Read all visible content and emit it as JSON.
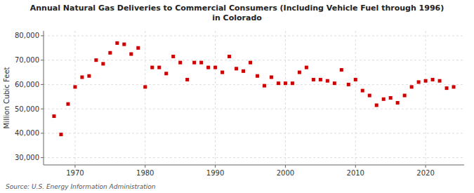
{
  "chart_data": {
    "type": "scatter",
    "title": "Annual Natural Gas Deliveries to Commercial Consumers (Including Vehicle Fuel through 1996)\nin Colorado",
    "y_label": "Million Cubic Feet",
    "source": "Source: U.S. Energy Information Administration",
    "x": [
      1967,
      1968,
      1969,
      1970,
      1971,
      1972,
      1973,
      1974,
      1975,
      1976,
      1977,
      1978,
      1979,
      1980,
      1981,
      1982,
      1983,
      1984,
      1985,
      1986,
      1987,
      1988,
      1989,
      1990,
      1991,
      1992,
      1993,
      1994,
      1995,
      1996,
      1997,
      1998,
      1999,
      2000,
      2001,
      2002,
      2003,
      2004,
      2005,
      2006,
      2007,
      2008,
      2009,
      2010,
      2011,
      2012,
      2013,
      2014,
      2015,
      2016,
      2017,
      2018,
      2019,
      2020,
      2021,
      2022,
      2023,
      2024
    ],
    "values": [
      47000,
      39500,
      52000,
      59000,
      63000,
      63500,
      70000,
      68500,
      73000,
      77000,
      76500,
      72500,
      75000,
      59000,
      67000,
      67000,
      64500,
      71500,
      69000,
      62000,
      69000,
      69000,
      67000,
      67000,
      65000,
      71500,
      66500,
      65500,
      69000,
      63500,
      59500,
      63000,
      60500,
      60500,
      60500,
      65000,
      67000,
      62000,
      62000,
      61500,
      60500,
      66000,
      60000,
      62000,
      57500,
      55500,
      51500,
      54000,
      54500,
      52500,
      55500,
      59000,
      61000,
      61500,
      62000,
      61500,
      58500,
      59000
    ],
    "color": "#cc0000",
    "marker": "square",
    "xlim": [
      1965.5,
      2025.5
    ],
    "xticks": [
      1970,
      1980,
      1990,
      2000,
      2010,
      2020
    ],
    "ylim": [
      27000,
      82000
    ],
    "yticks": [
      {
        "value": 30000,
        "label": "30,000"
      },
      {
        "value": 40000,
        "label": "40,000"
      },
      {
        "value": 50000,
        "label": "50,000"
      },
      {
        "value": 60000,
        "label": "60,000"
      },
      {
        "value": 70000,
        "label": "70,000"
      },
      {
        "value": 80000,
        "label": "80,000"
      }
    ],
    "grid": true
  }
}
